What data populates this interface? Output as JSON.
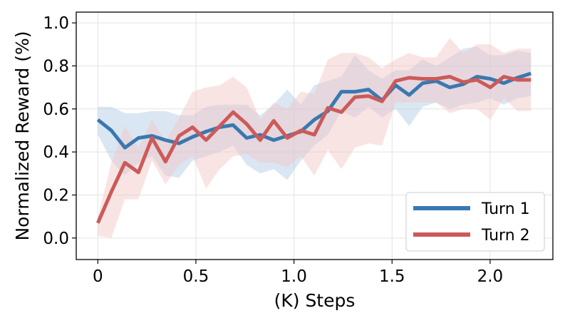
{
  "chart_data": {
    "type": "line",
    "title": "",
    "xlabel": "(K) Steps",
    "ylabel": "Normalized Reward (%)",
    "xlim": [
      -0.11,
      2.32
    ],
    "ylim": [
      -0.1,
      1.05
    ],
    "xticks": [
      0,
      0.5,
      1.0,
      1.5,
      2.0
    ],
    "xtick_labels": [
      "0",
      "0.5",
      "1.0",
      "1.5",
      "2.0"
    ],
    "yticks": [
      0.0,
      0.2,
      0.4,
      0.6,
      0.8,
      1.0
    ],
    "ytick_labels": [
      "0.0",
      "0.2",
      "0.4",
      "0.6",
      "0.8",
      "1.0"
    ],
    "grid": true,
    "legend_position": "bottom-right",
    "x": [
      0,
      0.069,
      0.138,
      0.207,
      0.276,
      0.345,
      0.414,
      0.483,
      0.552,
      0.621,
      0.69,
      0.759,
      0.828,
      0.897,
      0.966,
      1.035,
      1.104,
      1.173,
      1.242,
      1.311,
      1.38,
      1.449,
      1.518,
      1.587,
      1.656,
      1.725,
      1.794,
      1.863,
      1.932,
      2.001,
      2.07,
      2.139,
      2.208
    ],
    "series": [
      {
        "name": "Turn 1",
        "color": "#3a78b0",
        "band_color": "#aec9e2",
        "values": [
          0.55,
          0.5,
          0.42,
          0.465,
          0.475,
          0.455,
          0.44,
          0.47,
          0.495,
          0.515,
          0.525,
          0.465,
          0.48,
          0.455,
          0.475,
          0.495,
          0.55,
          0.59,
          0.68,
          0.68,
          0.69,
          0.64,
          0.71,
          0.665,
          0.72,
          0.73,
          0.7,
          0.715,
          0.75,
          0.74,
          0.72,
          0.745,
          0.765
        ],
        "upper": [
          0.61,
          0.61,
          0.58,
          0.58,
          0.59,
          0.59,
          0.57,
          0.57,
          0.61,
          0.62,
          0.62,
          0.62,
          0.57,
          0.62,
          0.69,
          0.62,
          0.71,
          0.73,
          0.75,
          0.85,
          0.78,
          0.74,
          0.78,
          0.78,
          0.83,
          0.8,
          0.84,
          0.88,
          0.89,
          0.85,
          0.85,
          0.87,
          0.86
        ],
        "lower": [
          0.48,
          0.36,
          0.29,
          0.35,
          0.38,
          0.29,
          0.28,
          0.36,
          0.38,
          0.4,
          0.43,
          0.34,
          0.3,
          0.32,
          0.27,
          0.36,
          0.43,
          0.48,
          0.59,
          0.56,
          0.61,
          0.56,
          0.6,
          0.52,
          0.61,
          0.63,
          0.6,
          0.62,
          0.63,
          0.65,
          0.62,
          0.65,
          0.66
        ]
      },
      {
        "name": "Turn 2",
        "color": "#cc5a59",
        "band_color": "#f2c3c3",
        "values": [
          0.07,
          0.215,
          0.35,
          0.305,
          0.465,
          0.355,
          0.475,
          0.515,
          0.455,
          0.52,
          0.585,
          0.53,
          0.455,
          0.545,
          0.465,
          0.5,
          0.48,
          0.605,
          0.585,
          0.655,
          0.66,
          0.635,
          0.73,
          0.745,
          0.74,
          0.74,
          0.75,
          0.725,
          0.735,
          0.7,
          0.75,
          0.735,
          0.735
        ],
        "upper": [
          0.1,
          0.35,
          0.52,
          0.42,
          0.55,
          0.45,
          0.56,
          0.68,
          0.7,
          0.71,
          0.75,
          0.7,
          0.55,
          0.63,
          0.6,
          0.68,
          0.67,
          0.83,
          0.86,
          0.86,
          0.84,
          0.79,
          0.83,
          0.86,
          0.84,
          0.84,
          0.93,
          0.86,
          0.9,
          0.9,
          0.86,
          0.88,
          0.88
        ],
        "lower": [
          0.01,
          0.0,
          0.18,
          0.18,
          0.36,
          0.25,
          0.34,
          0.38,
          0.23,
          0.32,
          0.38,
          0.39,
          0.35,
          0.35,
          0.33,
          0.38,
          0.29,
          0.41,
          0.32,
          0.42,
          0.44,
          0.43,
          0.63,
          0.63,
          0.63,
          0.63,
          0.58,
          0.6,
          0.6,
          0.55,
          0.65,
          0.59,
          0.59
        ]
      }
    ]
  }
}
